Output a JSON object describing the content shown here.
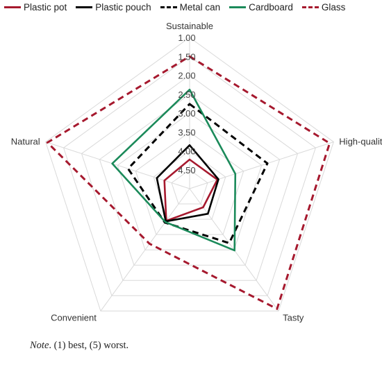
{
  "chart_data": {
    "type": "radar",
    "axes": [
      "Sustainable",
      "High-quality",
      "Tasty",
      "Convenient",
      "Natural"
    ],
    "r_ticks": [
      "1.00",
      "1.50",
      "2.00",
      "2.50",
      "3.00",
      "3.50",
      "4.00",
      "4.50"
    ],
    "r_range": [
      1.0,
      5.0
    ],
    "reversed": true,
    "legend_position": "top",
    "series": [
      {
        "name": "Plastic pot",
        "values": [
          4.23,
          4.23,
          4.39,
          3.95,
          4.3
        ],
        "color": "#a6192e",
        "dash": "solid"
      },
      {
        "name": "Plastic pouch",
        "values": [
          3.85,
          4.2,
          4.18,
          3.93,
          4.09
        ],
        "color": "#000000",
        "dash": "solid"
      },
      {
        "name": "Metal can",
        "values": [
          2.76,
          2.84,
          3.22,
          3.89,
          3.29
        ],
        "color": "#000000",
        "dash": "dashed"
      },
      {
        "name": "Cardboard",
        "values": [
          2.38,
          3.73,
          2.98,
          3.91,
          2.85
        ],
        "color": "#1b8a5a",
        "dash": "solid"
      },
      {
        "name": "Glass",
        "values": [
          1.5,
          1.11,
          1.07,
          3.2,
          1.05
        ],
        "color": "#a6192e",
        "dash": "dashed"
      }
    ]
  },
  "note": {
    "prefix": "Note",
    "text": ". (1) best, (5) worst."
  }
}
